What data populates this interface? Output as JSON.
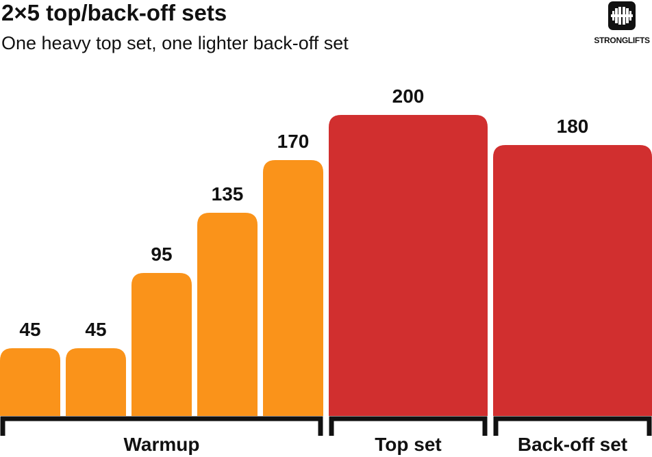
{
  "header": {
    "title": "2×5 top/back-off sets",
    "subtitle": "One heavy top set, one lighter back-off set"
  },
  "logo": {
    "icon": "barbell-icon",
    "text": "STRONGLIFTS"
  },
  "colors": {
    "warmup": "#FA931A",
    "top_set": "#D12F2F",
    "back_off": "#D12F2F",
    "text": "#111111"
  },
  "chart_data": {
    "type": "bar",
    "title": "2×5 top/back-off sets",
    "subtitle": "One heavy top set, one lighter back-off set",
    "xlabel": "",
    "ylabel": "",
    "ylim": [
      0,
      200
    ],
    "grid": false,
    "legend": "none",
    "values": [
      45,
      45,
      95,
      135,
      170,
      200,
      180
    ],
    "groups": [
      {
        "name": "Warmup",
        "indices": [
          0,
          1,
          2,
          3,
          4
        ],
        "color": "#FA931A"
      },
      {
        "name": "Top set",
        "indices": [
          5
        ],
        "color": "#D12F2F"
      },
      {
        "name": "Back-off set",
        "indices": [
          6
        ],
        "color": "#D12F2F"
      }
    ]
  }
}
